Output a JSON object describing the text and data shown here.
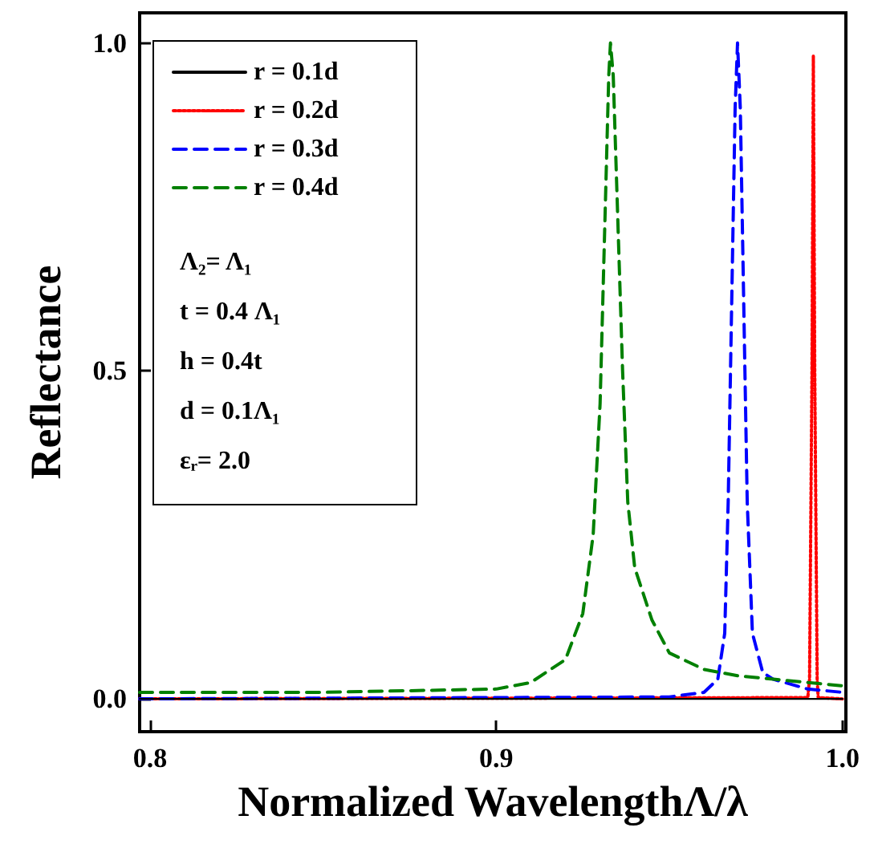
{
  "chart_data": {
    "type": "line",
    "xlabel": "Normalized WavelengthΛ/λ",
    "ylabel": "Reflectance",
    "xlim": [
      0.797,
      1.001
    ],
    "xticks": [
      0.8,
      0.9,
      {
        "value": 1.0,
        "label": "1.0"
      }
    ],
    "ylim": [
      -0.05,
      1.046
    ],
    "yticks": [
      {
        "value": 0,
        "label": "0.0"
      },
      0.5,
      {
        "value": 1.0,
        "label": "1.0"
      }
    ],
    "grid": false,
    "legend": "top left",
    "marker": "none",
    "annotations": [
      "Λ₂= Λ₁",
      "t = 0.4 Λ₁",
      "h = 0.4t",
      "d = 0.1Λ₁",
      "εᵣ= 2.0"
    ],
    "series": [
      {
        "name": "r = 0.1d",
        "color": "#000000",
        "line_style": "solid",
        "x": [
          0.797,
          1.0
        ],
        "values": [
          0,
          0
        ]
      },
      {
        "name": "r = 0.2d",
        "color": "#ff0000",
        "line_style": "dotted",
        "x": [
          0.797,
          0.99,
          0.9905,
          0.9912,
          0.9916,
          0.992,
          0.9927,
          0.993,
          1.0
        ],
        "values": [
          0,
          0.002,
          0.03,
          0.5,
          0.98,
          0.5,
          0.03,
          0.002,
          0
        ]
      },
      {
        "name": "r = 0.3d",
        "color": "#0000ff",
        "line_style": "dashed",
        "x": [
          0.797,
          0.95,
          0.96,
          0.964,
          0.966,
          0.967,
          0.968,
          0.969,
          0.9697,
          0.9705,
          0.9715,
          0.9725,
          0.974,
          0.977,
          0.98,
          0.99,
          1.0
        ],
        "values": [
          0,
          0.003,
          0.01,
          0.03,
          0.1,
          0.3,
          0.6,
          0.9,
          1.0,
          0.9,
          0.6,
          0.3,
          0.1,
          0.04,
          0.03,
          0.015,
          0.01
        ]
      },
      {
        "name": "r = 0.4d",
        "color": "#008000",
        "line_style": "dashed",
        "x": [
          0.797,
          0.85,
          0.9,
          0.91,
          0.92,
          0.925,
          0.928,
          0.93,
          0.9315,
          0.9325,
          0.933,
          0.9338,
          0.935,
          0.9365,
          0.938,
          0.94,
          0.945,
          0.95,
          0.96,
          0.97,
          0.98,
          0.99,
          1.0
        ],
        "values": [
          0.01,
          0.01,
          0.015,
          0.025,
          0.06,
          0.13,
          0.25,
          0.45,
          0.75,
          0.95,
          1.0,
          0.95,
          0.75,
          0.5,
          0.3,
          0.2,
          0.12,
          0.07,
          0.045,
          0.035,
          0.03,
          0.025,
          0.02
        ]
      }
    ]
  }
}
